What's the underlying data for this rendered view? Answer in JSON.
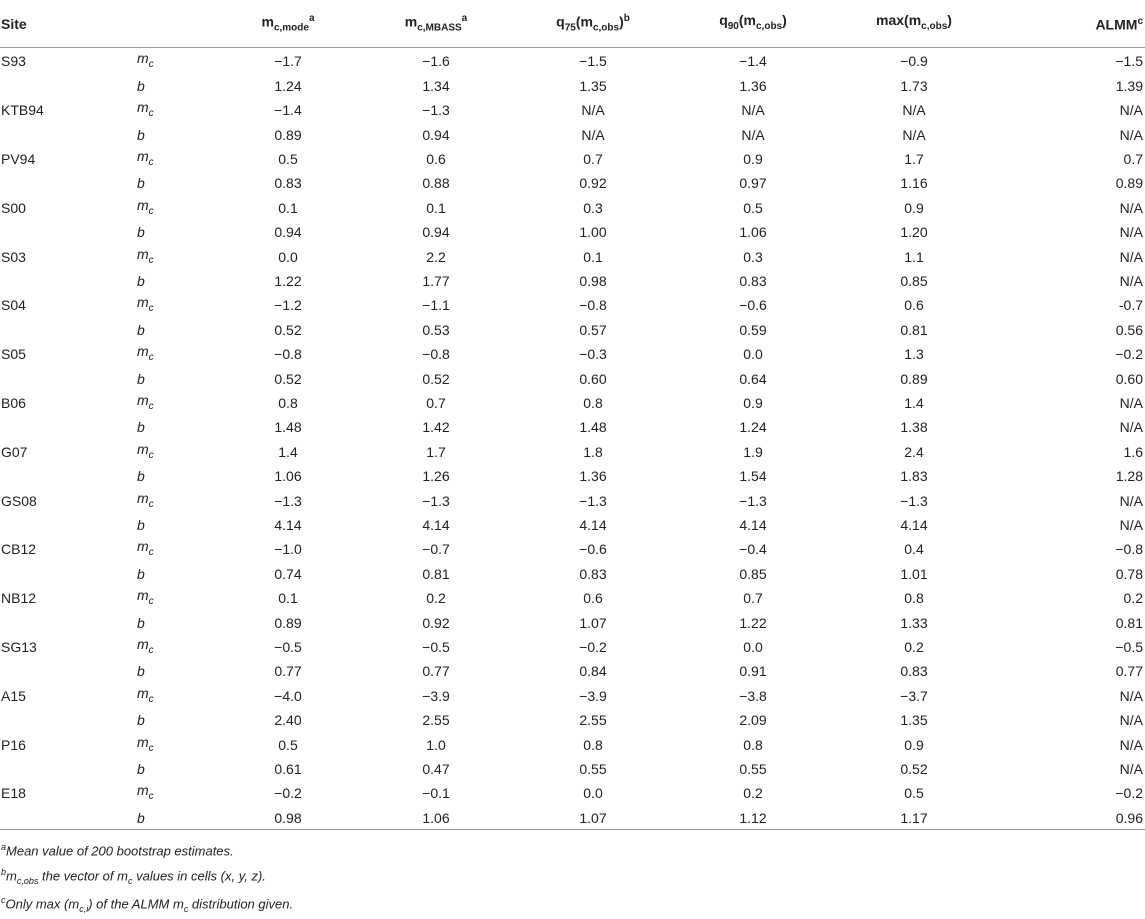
{
  "header": {
    "site": "Site",
    "col1_base": "m",
    "col1_sub": "c,mode",
    "col1_sup": "a",
    "col2_base": "m",
    "col2_sub": "c,MBASS",
    "col2_sup": "a",
    "col3_pre": "q",
    "col3_presub": "75",
    "col3_paren_open": "(m",
    "col3_sub": "c,obs",
    "col3_paren_close": ")",
    "col3_sup": "b",
    "col4_pre": "q",
    "col4_presub": "90",
    "col4_paren_open": "(m",
    "col4_sub": "c,obs",
    "col4_paren_close": ")",
    "col5_pre": "max",
    "col5_paren_open": "(m",
    "col5_sub": "c,obs",
    "col5_paren_close": ")",
    "col6": "ALMM",
    "col6_sup": "c"
  },
  "var_labels": {
    "mc_base": "m",
    "mc_sub": "c",
    "b": "b"
  },
  "rows": [
    {
      "site": "S93",
      "mc": [
        "−1.7",
        "−1.6",
        "−1.5",
        "−1.4",
        "−0.9",
        "−1.5"
      ],
      "b": [
        "1.24",
        "1.34",
        "1.35",
        "1.36",
        "1.73",
        "1.39"
      ]
    },
    {
      "site": "KTB94",
      "mc": [
        "−1.4",
        "−1.3",
        "N/A",
        "N/A",
        "N/A",
        "N/A"
      ],
      "b": [
        "0.89",
        "0.94",
        "N/A",
        "N/A",
        "N/A",
        "N/A"
      ]
    },
    {
      "site": "PV94",
      "mc": [
        "0.5",
        "0.6",
        "0.7",
        "0.9",
        "1.7",
        "0.7"
      ],
      "b": [
        "0.83",
        "0.88",
        "0.92",
        "0.97",
        "1.16",
        "0.89"
      ]
    },
    {
      "site": "S00",
      "mc": [
        "0.1",
        "0.1",
        "0.3",
        "0.5",
        "0.9",
        "N/A"
      ],
      "b": [
        "0.94",
        "0.94",
        "1.00",
        "1.06",
        "1.20",
        "N/A"
      ]
    },
    {
      "site": "S03",
      "mc": [
        "0.0",
        "2.2",
        "0.1",
        "0.3",
        "1.1",
        "N/A"
      ],
      "b": [
        "1.22",
        "1.77",
        "0.98",
        "0.83",
        "0.85",
        "N/A"
      ]
    },
    {
      "site": "S04",
      "mc": [
        "−1.2",
        "−1.1",
        "−0.8",
        "−0.6",
        "0.6",
        "-0.7"
      ],
      "b": [
        "0.52",
        "0.53",
        "0.57",
        "0.59",
        "0.81",
        "0.56"
      ]
    },
    {
      "site": "S05",
      "mc": [
        "−0.8",
        "−0.8",
        "−0.3",
        "0.0",
        "1.3",
        "−0.2"
      ],
      "b": [
        "0.52",
        "0.52",
        "0.60",
        "0.64",
        "0.89",
        "0.60"
      ]
    },
    {
      "site": "B06",
      "mc": [
        "0.8",
        "0.7",
        "0.8",
        "0.9",
        "1.4",
        "N/A"
      ],
      "b": [
        "1.48",
        "1.42",
        "1.48",
        "1.24",
        "1.38",
        "N/A"
      ]
    },
    {
      "site": "G07",
      "mc": [
        "1.4",
        "1.7",
        "1.8",
        "1.9",
        "2.4",
        "1.6"
      ],
      "b": [
        "1.06",
        "1.26",
        "1.36",
        "1.54",
        "1.83",
        "1.28"
      ]
    },
    {
      "site": "GS08",
      "mc": [
        "−1.3",
        "−1.3",
        "−1.3",
        "−1.3",
        "−1.3",
        "N/A"
      ],
      "b": [
        "4.14",
        "4.14",
        "4.14",
        "4.14",
        "4.14",
        "N/A"
      ]
    },
    {
      "site": "CB12",
      "mc": [
        "−1.0",
        "−0.7",
        "−0.6",
        "−0.4",
        "0.4",
        "−0.8"
      ],
      "b": [
        "0.74",
        "0.81",
        "0.83",
        "0.85",
        "1.01",
        "0.78"
      ]
    },
    {
      "site": "NB12",
      "mc": [
        "0.1",
        "0.2",
        "0.6",
        "0.7",
        "0.8",
        "0.2"
      ],
      "b": [
        "0.89",
        "0.92",
        "1.07",
        "1.22",
        "1.33",
        "0.81"
      ]
    },
    {
      "site": "SG13",
      "mc": [
        "−0.5",
        "−0.5",
        "−0.2",
        "0.0",
        "0.2",
        "−0.5"
      ],
      "b": [
        "0.77",
        "0.77",
        "0.84",
        "0.91",
        "0.83",
        "0.77"
      ]
    },
    {
      "site": "A15",
      "mc": [
        "−4.0",
        "−3.9",
        "−3.9",
        "−3.8",
        "−3.7",
        "N/A"
      ],
      "b": [
        "2.40",
        "2.55",
        "2.55",
        "2.09",
        "1.35",
        "N/A"
      ]
    },
    {
      "site": "P16",
      "mc": [
        "0.5",
        "1.0",
        "0.8",
        "0.8",
        "0.9",
        "N/A"
      ],
      "b": [
        "0.61",
        "0.47",
        "0.55",
        "0.55",
        "0.52",
        "N/A"
      ]
    },
    {
      "site": "E18",
      "mc": [
        "−0.2",
        "−0.1",
        "0.0",
        "0.2",
        "0.5",
        "−0.2"
      ],
      "b": [
        "0.98",
        "1.06",
        "1.07",
        "1.12",
        "1.17",
        "0.96"
      ]
    }
  ],
  "footnotes": {
    "a_mark": "a",
    "a_text": "Mean value of 200 bootstrap estimates.",
    "b_mark": "b",
    "b_m": "m",
    "b_sub": "c,obs",
    "b_text1": " the vector of ",
    "b_m2": "m",
    "b_sub2": "c",
    "b_text2": " values in cells ",
    "b_coords": "(x, y, z).",
    "c_mark": "c",
    "c_text1": "Only max ",
    "c_paren": "(m",
    "c_sub": "c,i",
    "c_paren_close": ")",
    "c_text2": " of the ALMM ",
    "c_m": "m",
    "c_sub2": "c",
    "c_text3": " distribution given."
  }
}
